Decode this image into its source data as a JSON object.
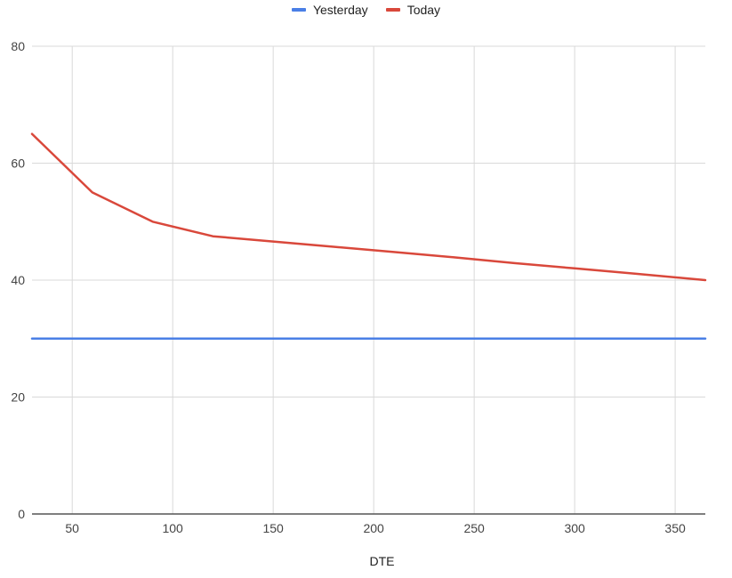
{
  "chart_data": {
    "type": "line",
    "title": "",
    "xlabel": "DTE",
    "ylabel": "",
    "xlim": [
      30,
      365
    ],
    "ylim": [
      0,
      80
    ],
    "x_ticks": [
      50,
      100,
      150,
      200,
      250,
      300,
      350
    ],
    "y_ticks": [
      0,
      20,
      40,
      60,
      80
    ],
    "grid": true,
    "legend_position": "top-center",
    "series": [
      {
        "name": "Yesterday",
        "color": "#4a7fe6",
        "x": [
          30,
          365
        ],
        "y": [
          30,
          30
        ]
      },
      {
        "name": "Today",
        "color": "#d9483b",
        "x": [
          30,
          60,
          90,
          120,
          150,
          180,
          210,
          240,
          270,
          300,
          330,
          365
        ],
        "y": [
          65,
          55,
          50,
          47.5,
          46.6,
          45.7,
          44.8,
          43.9,
          42.9,
          42,
          41.1,
          40
        ]
      }
    ]
  }
}
